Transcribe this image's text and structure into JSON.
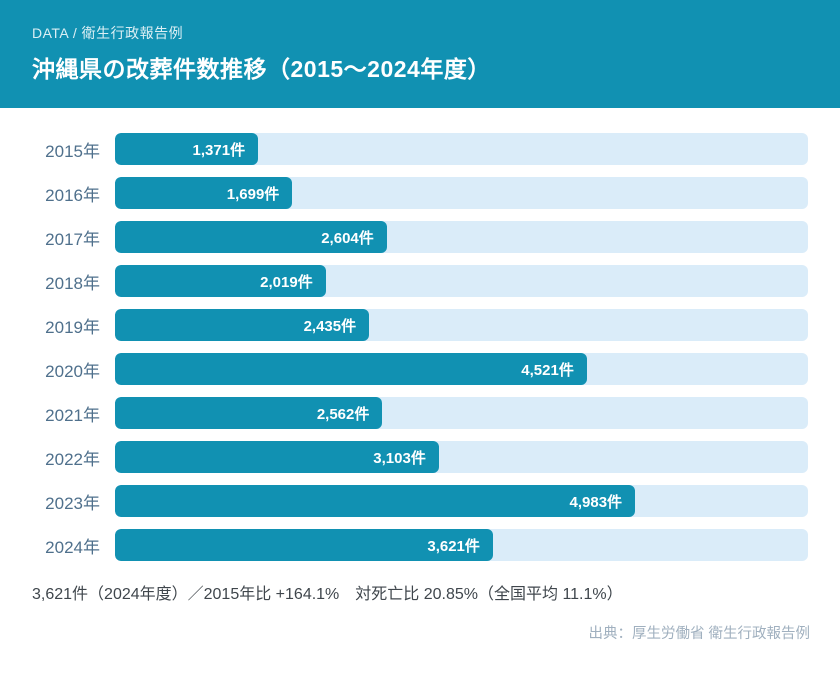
{
  "colors": {
    "accent": "#1191b2",
    "track": "#daecf9"
  },
  "header": {
    "eyebrow": "DATA / 衛生行政報告例",
    "title": "沖縄県の改葬件数推移（2015～2024年度）"
  },
  "chart_data": {
    "type": "bar",
    "orientation": "horizontal",
    "categories": [
      "2015年",
      "2016年",
      "2017年",
      "2018年",
      "2019年",
      "2020年",
      "2021年",
      "2022年",
      "2023年",
      "2024年"
    ],
    "values": [
      1371,
      1699,
      2604,
      2019,
      2435,
      4521,
      2562,
      3103,
      4983,
      3621
    ],
    "value_labels": [
      "1,371件",
      "1,699件",
      "2,604件",
      "2,019件",
      "2,435件",
      "4,521件",
      "2,562件",
      "3,103件",
      "4,983件",
      "3,621件"
    ],
    "xlim": [
      0,
      6640
    ],
    "grid": false,
    "legend": false,
    "title": "沖縄県の改葬件数推移（2015～2024年度）",
    "xlabel": "",
    "ylabel": ""
  },
  "footer": {
    "summary": "3,621件（2024年度）／2015年比 +164.1%　対死亡比 20.85%（全国平均 11.1%）",
    "source": "出典：厚生労働省 衛生行政報告例"
  }
}
